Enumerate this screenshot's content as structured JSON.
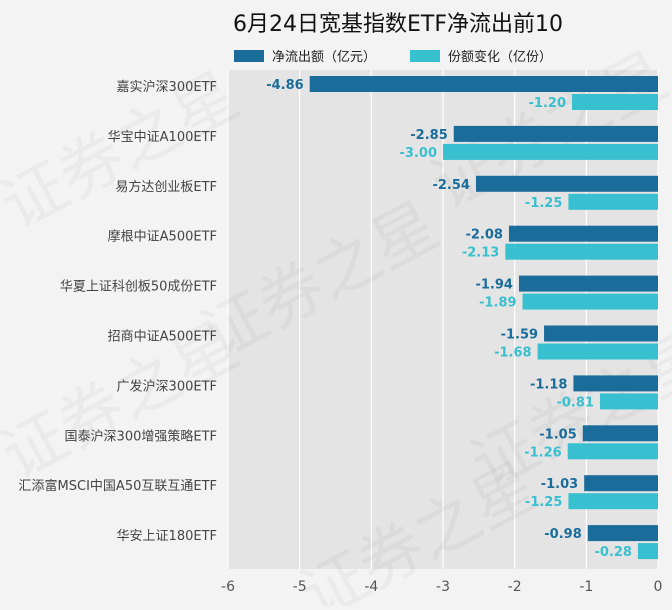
{
  "chart_data": {
    "type": "bar",
    "orientation": "horizontal",
    "title": "6月24日宽基指数ETF净流出前10",
    "categories": [
      "嘉实沪深300ETF",
      "华宝中证A100ETF",
      "易方达创业板ETF",
      "摩根中证A500ETF",
      "华夏上证科创板50成份ETF",
      "招商中证A500ETF",
      "广发沪深300ETF",
      "国泰沪深300增强策略ETF",
      "汇添富MSCI中国A50互联互通ETF",
      "华安上证180ETF"
    ],
    "series": [
      {
        "name": "净流出额（亿元）",
        "color": "#1a6d9b",
        "values": [
          -4.86,
          -2.85,
          -2.54,
          -2.08,
          -1.94,
          -1.59,
          -1.18,
          -1.05,
          -1.03,
          -0.98
        ],
        "labels": [
          "-4.86",
          "-2.85",
          "-2.54",
          "-2.08",
          "-1.94",
          "-1.59",
          "-1.18",
          "-1.05",
          "-1.03",
          "-0.98"
        ]
      },
      {
        "name": "份额变化（亿份）",
        "color": "#38bfd0",
        "values": [
          -1.2,
          -3.0,
          -1.25,
          -2.13,
          -1.89,
          -1.68,
          -0.81,
          -1.26,
          -1.25,
          -0.28
        ],
        "labels": [
          "-1.20",
          "-3.00",
          "-1.25",
          "-2.13",
          "-1.89",
          "-1.68",
          "-0.81",
          "-1.26",
          "-1.25",
          "-0.28"
        ]
      }
    ],
    "xlim": [
      -6,
      0
    ],
    "xticks": [
      "-6",
      "-5",
      "-4",
      "-3",
      "-2",
      "-1",
      "0"
    ],
    "grid": true,
    "legend_position": "top"
  },
  "watermark": "证券之星"
}
